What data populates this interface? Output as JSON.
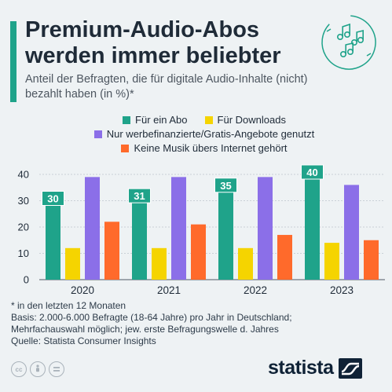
{
  "header": {
    "title": "Premium-Audio-Abos werden immer beliebter",
    "subtitle": "Anteil der Befragten, die für digitale Audio-Inhalte (nicht) bezahlt haben (in %)*",
    "accent_color": "#1fa38a",
    "icon": "music-notes-icon"
  },
  "chart_data": {
    "type": "bar",
    "categories": [
      "2020",
      "2021",
      "2022",
      "2023"
    ],
    "series": [
      {
        "name": "Für ein Abo",
        "color": "#1fa38a",
        "values": [
          30,
          31,
          35,
          40
        ],
        "labeled": true
      },
      {
        "name": "Für Downloads",
        "color": "#f5d400",
        "values": [
          12,
          12,
          12,
          14
        ],
        "labeled": false
      },
      {
        "name": "Nur werbefinanzierte/Gratis-Angebote genutzt",
        "color": "#8b6fe8",
        "values": [
          39,
          39,
          39,
          36
        ],
        "labeled": false
      },
      {
        "name": "Keine Musik übers Internet gehört",
        "color": "#ff6a2b",
        "values": [
          22,
          21,
          17,
          15
        ],
        "labeled": false
      }
    ],
    "yticks": [
      0,
      10,
      20,
      30,
      40
    ],
    "ylim": [
      0,
      40
    ],
    "grid": true,
    "legend_position": "top"
  },
  "footer": {
    "notes": [
      "* in den letzten 12 Monaten",
      "Basis: 2.000-6.000 Befragte (18-64 Jahre) pro Jahr in Deutschland;",
      "Mehrfachauswahl möglich; jew. erste Befragungswelle d. Jahres",
      "Quelle: Statista Consumer Insights"
    ],
    "license_icons": [
      "cc-icon",
      "attribution-icon",
      "no-derivatives-icon"
    ],
    "brand": "statista",
    "brand_icon": "statista-logo-icon"
  }
}
